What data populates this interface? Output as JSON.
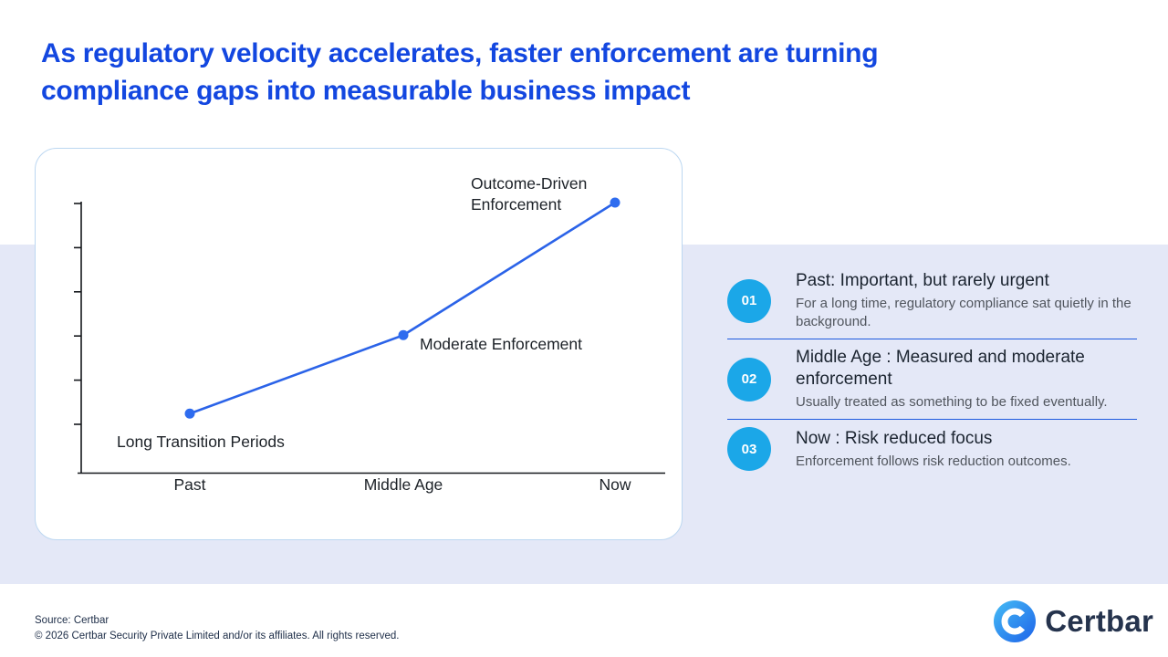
{
  "title": {
    "line1": "As regulatory velocity accelerates, faster enforcement are turning",
    "line2": "compliance gaps into measurable business impact"
  },
  "chart_data": {
    "type": "line",
    "categories": [
      "Past",
      "Middle Age",
      "Now"
    ],
    "values": [
      2.2,
      5.1,
      10
    ],
    "ylim": [
      0,
      10
    ],
    "y_tick_count": 6,
    "grid": false,
    "point_labels": [
      "Long Transition Periods",
      "Moderate Enforcement",
      "Outcome-Driven\nEnforcement"
    ],
    "title": "",
    "xlabel": "",
    "ylabel": "",
    "line_color": "#2B63E8",
    "point_color": "#2E6CEF",
    "axis_color": "#15181C",
    "label_color": "#1C2127"
  },
  "steps": {
    "badge_color": "#1BA7E8",
    "divider_color": "#1E5AE0",
    "items": [
      {
        "number": "01",
        "heading": "Past: Important, but rarely urgent",
        "body": "For a long time, regulatory compliance sat quietly in the background."
      },
      {
        "number": "02",
        "heading": "Middle Age : Measured and moderate enforcement",
        "body": "Usually treated as something to be fixed eventually."
      },
      {
        "number": "03",
        "heading": "Now : Risk reduced focus",
        "body": "Enforcement follows risk reduction outcomes."
      }
    ]
  },
  "footer": {
    "source": "Source: Certbar",
    "copyright": "© 2026 Certbar Security Private Limited and/or its affiliates. All rights reserved.",
    "logo_text": "Certbar"
  },
  "colors": {
    "title_blue": "#1347E0",
    "band_lavender": "#E4E8F7",
    "card_border": "#BCD7F1",
    "logo_gradient_start": "#45BCF5",
    "logo_gradient_end": "#1E63E9"
  }
}
